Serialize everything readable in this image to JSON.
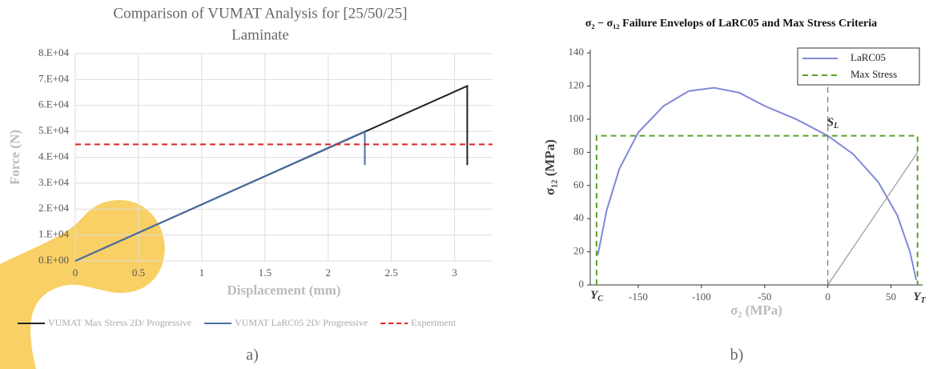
{
  "chart_data": [
    {
      "type": "line",
      "title": [
        "Comparison of VUMAT Analysis for [25/50/25]",
        "Laminate"
      ],
      "xlabel": "Displacement (mm)",
      "ylabel": "Force (N)",
      "xlim": [
        0,
        3.3
      ],
      "ylim": [
        0,
        80000
      ],
      "xticks": [
        0,
        0.5,
        1,
        1.5,
        2,
        2.5,
        3
      ],
      "yticks": [
        {
          "value": 0,
          "label": "0.E+00"
        },
        {
          "value": 10000,
          "label": "1.E+04"
        },
        {
          "value": 20000,
          "label": "2.E+04"
        },
        {
          "value": 30000,
          "label": "3.E+04"
        },
        {
          "value": 40000,
          "label": "4.E+04"
        },
        {
          "value": 50000,
          "label": "5.E+04"
        },
        {
          "value": 60000,
          "label": "6.E+04"
        },
        {
          "value": 70000,
          "label": "7.E+04"
        },
        {
          "value": 80000,
          "label": "8.E+04"
        }
      ],
      "grid": true,
      "legend": "bottom",
      "series": [
        {
          "name": "VUMAT Max Stress 2D/ Progressive",
          "color": "#222222",
          "x": [
            0,
            3.1,
            3.1
          ],
          "values": [
            0,
            67500,
            37000
          ]
        },
        {
          "name": "VUMAT LaRC05 2D/ Progressive",
          "color": "#4a6fa5",
          "x": [
            0,
            2.29,
            2.29
          ],
          "values": [
            0,
            50000,
            37000
          ]
        },
        {
          "name": "Experiment",
          "color": "#e02020",
          "dash": true,
          "x": [
            0,
            3.3
          ],
          "values": [
            45000,
            45000
          ]
        }
      ],
      "caption": "a)"
    },
    {
      "type": "line",
      "title": "σ₂ − σ₁₂ Failure Envelops of LaRC05 and Max Stress Criteria",
      "xlabel": "σ₂ (MPa)",
      "ylabel": "σ₁₂ (MPa)",
      "xlim": [
        -188,
        75
      ],
      "ylim": [
        0,
        142
      ],
      "xticks": [
        -150,
        -100,
        -50,
        0,
        50
      ],
      "yticks": [
        0,
        20,
        40,
        60,
        80,
        100,
        120,
        140
      ],
      "grid": false,
      "legend": "upper right",
      "series": [
        {
          "name": "LaRC05",
          "color": "#8088d8",
          "x": [
            -182,
            -175,
            -165,
            -150,
            -130,
            -110,
            -90,
            -70,
            -50,
            -25,
            0,
            20,
            40,
            55,
            65,
            70
          ],
          "values": [
            18,
            45,
            70,
            92,
            108,
            117,
            119,
            116,
            108,
            100,
            90,
            79,
            62,
            42,
            20,
            3
          ]
        },
        {
          "name": "Max Stress",
          "color": "#5aa02c",
          "dash": true,
          "x": [
            -183,
            -183,
            71,
            71
          ],
          "values": [
            0,
            90,
            90,
            0
          ]
        },
        {
          "color": "#999999",
          "x": [
            0,
            71
          ],
          "values": [
            0,
            80
          ]
        },
        {
          "color": "#777777",
          "dash": true,
          "x": [
            0,
            0
          ],
          "values": [
            0,
            142
          ]
        }
      ],
      "annotations": [
        {
          "text": "Y",
          "sub": "C"
        },
        {
          "text": "Y",
          "sub": "T"
        },
        {
          "text": "S",
          "sub": "L"
        }
      ],
      "caption": "b)"
    }
  ]
}
